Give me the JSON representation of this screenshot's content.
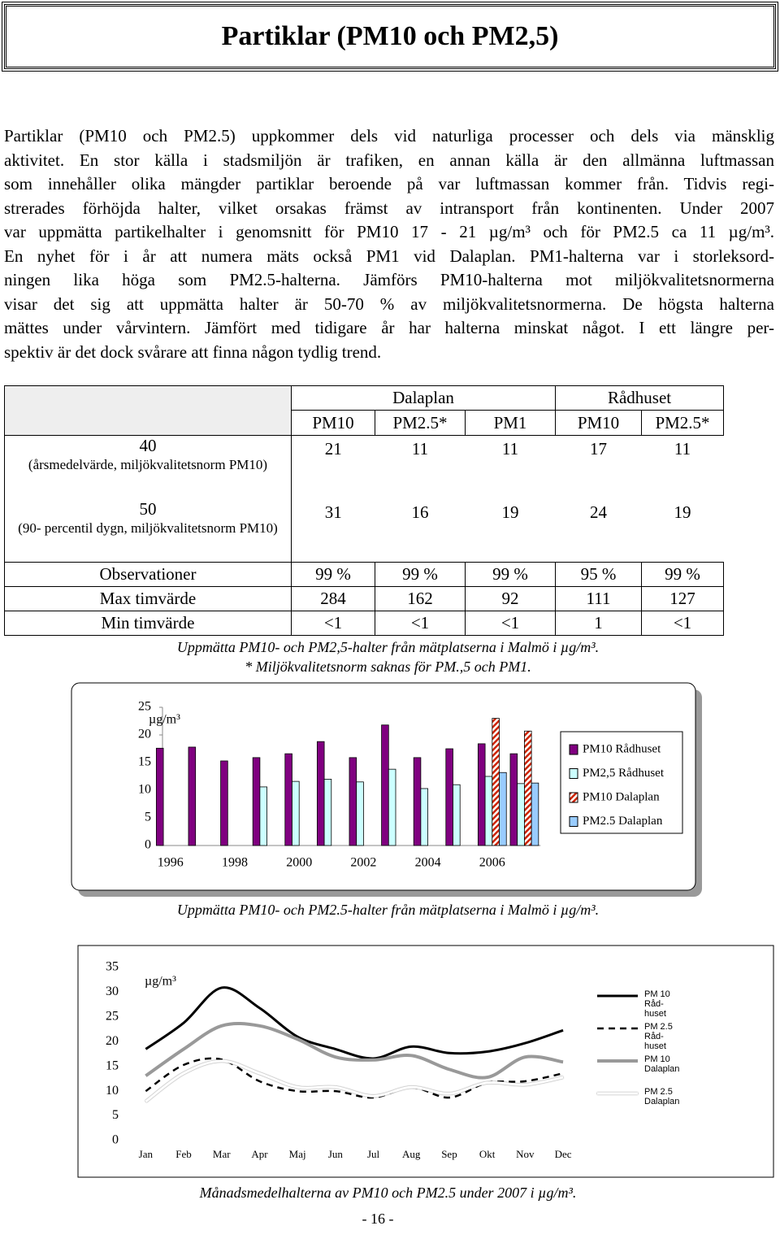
{
  "header": {
    "title": "Partiklar (PM10 och PM2,5)"
  },
  "body": {
    "lines": [
      "Partiklar (PM10 och PM2.5) uppkommer dels vid naturliga processer och dels via mänsklig",
      "aktivitet. En stor källa i stadsmiljön är trafiken, en annan källa är den allmänna luftmassan",
      "som innehåller olika mängder partiklar beroende på var luftmassan kommer från. Tidvis regi-",
      "strerades förhöjda halter, vilket orsakas främst av intransport från kontinenten. Under 2007",
      "var uppmätta partikelhalter i genomsnitt för PM10 17 - 21 µg/m³ och för PM2.5 ca 11 µg/m³.",
      "En nyhet för i år att numera mäts också PM1 vid Dalaplan. PM1-halterna var i storleksord-",
      "ningen lika höga som PM2.5-halterna. Jämförs PM10-halterna mot miljökvalitetsnormerna",
      "visar det sig att uppmätta halter är 50-70 % av miljökvalitetsnormerna. De högsta halterna",
      "mättes under vårvintern. Jämfört med tidigare år har halterna minskat något. I ett längre per-",
      "spektiv är det dock svårare att finna någon tydlig trend."
    ]
  },
  "table": {
    "group_headers": [
      "Dalaplan",
      "Rådhuset"
    ],
    "columns": [
      "PM10",
      "PM2.5*",
      "PM1",
      "PM10",
      "PM2.5*"
    ],
    "rows": [
      {
        "label": "40",
        "note": "(årsmedelvärde, miljökvalitetsnorm PM10)",
        "cells": [
          21,
          11,
          11,
          17,
          11
        ]
      },
      {
        "label": "50",
        "note": "(90- percentil dygn, miljökvalitetsnorm PM10)",
        "cells": [
          31,
          16,
          19,
          24,
          19
        ]
      },
      {
        "label": "Observationer",
        "cells": [
          "99 %",
          "99 %",
          "99 %",
          "95 %",
          "99 %"
        ]
      },
      {
        "label": "Max timvärde",
        "cells": [
          284,
          162,
          92,
          111,
          127
        ]
      },
      {
        "label": "Min timvärde",
        "cells": [
          "<1",
          "<1",
          "<1",
          1,
          "<1"
        ]
      }
    ]
  },
  "table_notes": [
    "Uppmätta PM10- och PM2,5-halter från mätplatserna i Malmö i µg/m³.",
    "* Miljökvalitetsnorm saknas för PM.,5 och PM1."
  ],
  "chart_data": [
    {
      "type": "bar",
      "y_label": "µg/m³",
      "caption": "Uppmätta PM10- och PM2.5-halter från mätplatserna i Malmö  i µg/m³.",
      "categories": [
        "1996",
        null,
        "1998",
        null,
        "2000",
        null,
        "2002",
        null,
        "2004",
        null,
        "2006",
        null
      ],
      "ylim": [
        0,
        25
      ],
      "yticks": [
        0,
        5,
        10,
        15,
        20,
        25
      ],
      "legend": "right",
      "series": [
        {
          "name": "PM10 Rådhuset",
          "color": "#800080",
          "values": [
            17.6,
            17.8,
            15.3,
            15.9,
            16.6,
            18.8,
            15.9,
            21.8,
            15.9,
            17.5,
            18.4,
            16.6
          ]
        },
        {
          "name": "PM2,5 Rådhuset",
          "color": "#ccffff",
          "values": [
            null,
            null,
            null,
            10.6,
            11.6,
            12,
            11.5,
            13.8,
            10.3,
            11,
            12.5,
            11.2
          ]
        },
        {
          "name": "PM10 Dalaplan",
          "color": "#cc2200",
          "pattern": "hatched",
          "values": [
            null,
            null,
            null,
            null,
            null,
            null,
            null,
            null,
            null,
            null,
            23,
            20.7
          ]
        },
        {
          "name": "PM2.5 Dalaplan",
          "color": "#99ccff",
          "values": [
            null,
            null,
            null,
            null,
            null,
            null,
            null,
            null,
            null,
            null,
            13.2,
            11.3
          ]
        }
      ]
    },
    {
      "type": "line",
      "y_label": "µg/m³",
      "caption": "Månadsmedelhalterna av PM10 och PM2.5 under 2007 i µg/m³.",
      "categories": [
        "Jan",
        "Feb",
        "Mar",
        "Apr",
        "Maj",
        "Jun",
        "Jul",
        "Aug",
        "Sep",
        "Okt",
        "Nov",
        "Dec"
      ],
      "ylim": [
        0,
        35
      ],
      "yticks": [
        0,
        5,
        10,
        15,
        20,
        25,
        30,
        35
      ],
      "legend": "right",
      "series": [
        {
          "name": "PM 10 Råd- huset",
          "color": "#000000",
          "width": 3,
          "values": [
            18.5,
            23.8,
            30.9,
            26.8,
            21,
            18.5,
            16.6,
            19,
            17.7,
            18,
            19.7,
            22.3
          ]
        },
        {
          "name": "PM 2.5 Råd- huset",
          "color": "#000000",
          "width": 2.5,
          "dashed": true,
          "values": [
            10,
            15.3,
            16.4,
            12,
            10,
            10,
            8.7,
            10.8,
            8.7,
            11.7,
            12,
            13.6
          ]
        },
        {
          "name": "PM 10 Dalaplan",
          "color": "#999999",
          "width": 4,
          "values": [
            13.1,
            18.5,
            23.2,
            23.2,
            20.5,
            16.9,
            16.3,
            17.2,
            14.4,
            12.8,
            16.9,
            15.9
          ]
        },
        {
          "name": "PM 2.5 Dalaplan",
          "color": "#ffffff",
          "width": 3,
          "values": [
            7.9,
            13.6,
            16.1,
            13.6,
            10.8,
            10.8,
            9,
            10.8,
            9.5,
            11.7,
            11.3,
            12.8
          ]
        }
      ]
    }
  ],
  "footer": {
    "page_number": "- 16 -"
  }
}
